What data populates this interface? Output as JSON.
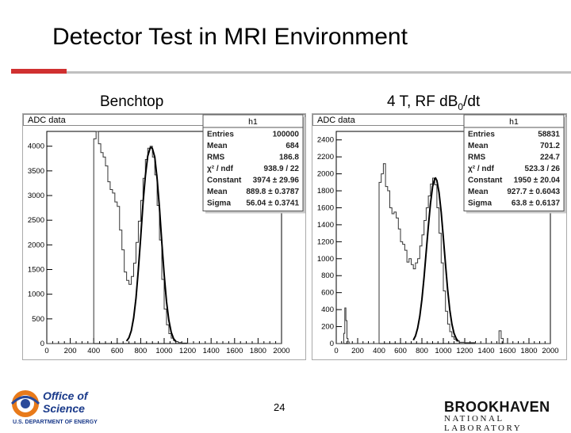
{
  "slide": {
    "title": "Detector Test in MRI Environment",
    "label_left": "Benchtop",
    "label_right_pre": "4 T, RF dB",
    "label_right_sub": "0",
    "label_right_post": "/dt",
    "page": "24"
  },
  "logos": {
    "doe_line1": "Office of",
    "doe_line2": "Science",
    "doe_line3": "U.S. DEPARTMENT OF ENERGY",
    "bnl_line1": "BROOKHAVEN",
    "bnl_line2": "NATIONAL LABORATORY"
  },
  "chart_data": [
    {
      "type": "line",
      "title": "ADC data",
      "xlim": [
        0,
        2000
      ],
      "ylim": [
        0,
        4300
      ],
      "xticks": [
        0,
        200,
        400,
        600,
        800,
        1000,
        1200,
        1400,
        1600,
        1800,
        2000
      ],
      "yticks": [
        500,
        1000,
        1500,
        2000,
        2500,
        3000,
        3500,
        4000
      ],
      "stats": {
        "name": "h1",
        "rows": [
          [
            "Entries",
            "100000"
          ],
          [
            "Mean",
            "684"
          ],
          [
            "RMS",
            "186.8"
          ],
          [
            "χ² / ndf",
            "938.9 / 22"
          ],
          [
            "Constant",
            "3974 ± 29.96"
          ],
          [
            "Mean",
            "889.8 ± 0.3787"
          ],
          [
            "Sigma",
            "56.04 ± 0.3741"
          ]
        ]
      },
      "series": [
        {
          "x": [
            0,
            380,
            400,
            420,
            440,
            460,
            480,
            500,
            520,
            540,
            560,
            580,
            600,
            620,
            640,
            660,
            680,
            700,
            720,
            740,
            760,
            780,
            800,
            820,
            840,
            860,
            880,
            900,
            920,
            940,
            960,
            980,
            1000,
            1020,
            1040,
            1060,
            1080,
            1100,
            1120,
            1150,
            1200,
            2000
          ],
          "y": [
            0,
            0,
            4150,
            4300,
            4050,
            3870,
            3780,
            3600,
            3280,
            3120,
            3050,
            2870,
            2780,
            2300,
            1900,
            1450,
            1280,
            1200,
            1360,
            1630,
            2050,
            2480,
            2900,
            3350,
            3730,
            3960,
            4000,
            3780,
            3420,
            2800,
            2100,
            1300,
            700,
            380,
            200,
            110,
            60,
            40,
            20,
            10,
            0,
            0
          ]
        },
        {
          "x": [
            680,
            700,
            720,
            740,
            760,
            780,
            800,
            820,
            840,
            860,
            880,
            890,
            900,
            920,
            940,
            960,
            980,
            1000,
            1020,
            1040,
            1060,
            1080,
            1100
          ],
          "y": [
            50,
            120,
            260,
            520,
            920,
            1500,
            2150,
            2850,
            3400,
            3800,
            3960,
            3974,
            3950,
            3780,
            3340,
            2750,
            2050,
            1400,
            850,
            470,
            230,
            100,
            40
          ]
        }
      ]
    },
    {
      "type": "line",
      "title": "ADC data",
      "xlim": [
        0,
        2000
      ],
      "ylim": [
        0,
        2500
      ],
      "xticks": [
        0,
        200,
        400,
        600,
        800,
        1000,
        1200,
        1400,
        1600,
        1800,
        2000
      ],
      "yticks": [
        200,
        400,
        600,
        800,
        1000,
        1200,
        1400,
        1600,
        1800,
        2000,
        2200,
        2400
      ],
      "stats": {
        "name": "h1",
        "rows": [
          [
            "Entries",
            "58831"
          ],
          [
            "Mean",
            "701.2"
          ],
          [
            "RMS",
            "224.7"
          ],
          [
            "χ² / ndf",
            "523.3 / 26"
          ],
          [
            "Constant",
            "1950 ± 20.04"
          ],
          [
            "Mean",
            "927.7 ± 0.6043"
          ],
          [
            "Sigma",
            "63.8 ± 0.6137"
          ]
        ]
      },
      "series": [
        {
          "x": [
            0,
            60,
            70,
            80,
            90,
            100,
            110,
            120,
            140,
            380,
            400,
            420,
            440,
            460,
            480,
            500,
            520,
            540,
            560,
            580,
            600,
            620,
            640,
            660,
            680,
            700,
            720,
            740,
            760,
            780,
            800,
            820,
            840,
            860,
            880,
            900,
            920,
            940,
            960,
            980,
            1000,
            1020,
            1040,
            1060,
            1080,
            1100,
            1120,
            1150,
            1200,
            1300,
            1500,
            1520,
            1540,
            1560,
            1600,
            2000
          ],
          "y": [
            0,
            0,
            120,
            420,
            270,
            60,
            20,
            0,
            0,
            0,
            1900,
            2000,
            2120,
            1850,
            1800,
            1600,
            1530,
            1550,
            1480,
            1350,
            1200,
            1170,
            1100,
            960,
            1000,
            930,
            880,
            950,
            1000,
            1150,
            1280,
            1450,
            1600,
            1740,
            1880,
            1950,
            1870,
            1600,
            1300,
            950,
            620,
            380,
            230,
            140,
            80,
            50,
            30,
            15,
            10,
            0,
            0,
            150,
            60,
            0,
            0,
            0
          ]
        },
        {
          "x": [
            720,
            740,
            760,
            780,
            800,
            820,
            840,
            860,
            880,
            900,
            920,
            928,
            940,
            960,
            980,
            1000,
            1020,
            1040,
            1060,
            1080,
            1100,
            1120,
            1140
          ],
          "y": [
            40,
            90,
            180,
            320,
            520,
            780,
            1080,
            1380,
            1650,
            1850,
            1945,
            1950,
            1920,
            1780,
            1550,
            1250,
            940,
            640,
            400,
            230,
            120,
            60,
            25
          ]
        }
      ]
    }
  ]
}
